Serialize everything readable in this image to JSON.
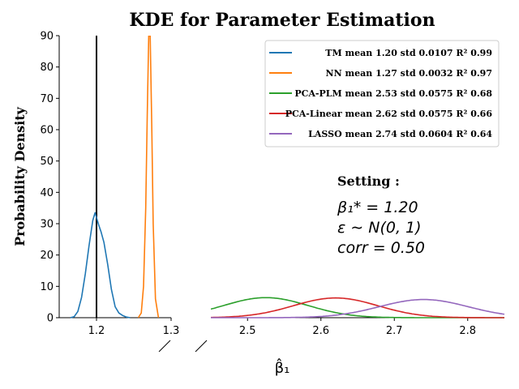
{
  "chart_data": {
    "type": "line",
    "title": "KDE for Parameter Estimation",
    "ylabel": "Probability Density",
    "xlabel": "β̂₁",
    "broken_x_axis": true,
    "left_panel": {
      "xlim": [
        1.15,
        1.3
      ],
      "xticks": [
        "1.2",
        "1.3"
      ]
    },
    "right_panel": {
      "xlim": [
        2.45,
        2.85
      ],
      "xticks": [
        "2.5",
        "2.6",
        "2.7",
        "2.8"
      ]
    },
    "ylim": [
      0,
      90
    ],
    "yticks": [
      "0",
      "10",
      "20",
      "30",
      "40",
      "50",
      "60",
      "70",
      "80",
      "90"
    ],
    "vertical_line": {
      "x": 1.2,
      "color": "#000000"
    },
    "legend_position": "upper-right",
    "series": [
      {
        "name": "TM mean 1.20 std 0.0107 R² 0.99",
        "color": "#1f77b4",
        "panel": "left",
        "x": [
          1.165,
          1.17,
          1.175,
          1.18,
          1.185,
          1.19,
          1.195,
          1.198,
          1.2,
          1.203,
          1.206,
          1.21,
          1.215,
          1.22,
          1.225,
          1.23,
          1.235,
          1.24,
          1.245
        ],
        "y": [
          0.0,
          0.3,
          2.0,
          6.5,
          14.0,
          23.0,
          31.0,
          33.5,
          32.0,
          29.5,
          27.5,
          24.0,
          17.0,
          9.0,
          3.5,
          1.5,
          0.7,
          0.2,
          0.0
        ]
      },
      {
        "name": "NN mean 1.27 std 0.0032 R² 0.97",
        "color": "#ff7f0e",
        "panel": "left",
        "x": [
          1.256,
          1.26,
          1.263,
          1.266,
          1.268,
          1.27,
          1.272,
          1.274,
          1.276,
          1.279,
          1.283
        ],
        "y": [
          0.0,
          1.5,
          10.0,
          35.0,
          65.0,
          90.0,
          90.0,
          62.0,
          30.0,
          6.0,
          0.0
        ]
      },
      {
        "name": "PCA-PLM mean 2.53 std 0.0575 R² 0.68",
        "color": "#2ca02c",
        "panel": "right",
        "mean": 2.525,
        "std": 0.0575,
        "peak": 6.4
      },
      {
        "name": "PCA-Linear mean 2.62 std 0.0575 R² 0.66",
        "color": "#d62728",
        "panel": "right",
        "mean": 2.62,
        "std": 0.0575,
        "peak": 6.3
      },
      {
        "name": "LASSO mean 2.74 std 0.0604 R² 0.64",
        "color": "#9467bd",
        "panel": "right",
        "mean": 2.74,
        "std": 0.0604,
        "peak": 5.8
      }
    ]
  },
  "setting": {
    "title": "Setting :",
    "line1": "β₁* = 1.20",
    "line2": "ε ∼ N(0, 1)",
    "line3": "corr = 0.50"
  }
}
